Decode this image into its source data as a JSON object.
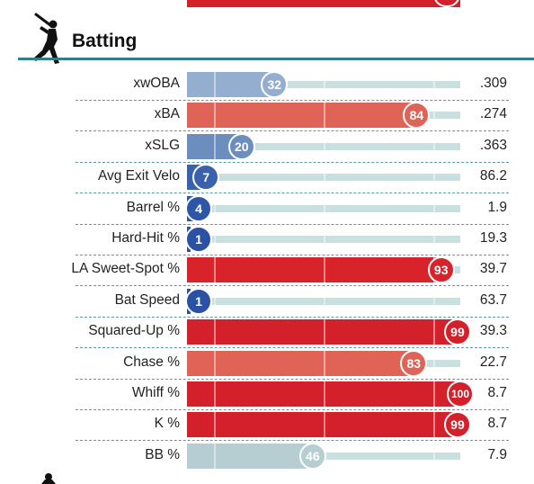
{
  "section": {
    "title": "Batting"
  },
  "icons": {
    "batter": "batter-silhouette-icon",
    "fielder": "fielder-silhouette-icon"
  },
  "colors": {
    "header_rule": "#2f7f87",
    "dashed_divider": "#5a9aa0",
    "track": "#c9dfe0",
    "top_bar": "#d42028"
  },
  "chart_data": {
    "type": "bar",
    "orientation": "horizontal",
    "title": "Batting",
    "value_axis": "percentile",
    "xlim": [
      0,
      100
    ],
    "rows": [
      {
        "label": "xwOBA",
        "percentile": 32,
        "stat": ".309",
        "color": "#93aecf"
      },
      {
        "label": "xBA",
        "percentile": 84,
        "stat": ".274",
        "color": "#e06357"
      },
      {
        "label": "xSLG",
        "percentile": 20,
        "stat": ".363",
        "color": "#6c8ebf"
      },
      {
        "label": "Avg Exit Velo",
        "percentile": 7,
        "stat": "86.2",
        "color": "#3a62ac"
      },
      {
        "label": "Barrel %",
        "percentile": 4,
        "stat": "1.9",
        "color": "#2e56a6"
      },
      {
        "label": "Hard-Hit %",
        "percentile": 1,
        "stat": "19.3",
        "color": "#2a51a3"
      },
      {
        "label": "LA Sweet-Spot %",
        "percentile": 93,
        "stat": "39.7",
        "color": "#d8232b"
      },
      {
        "label": "Bat Speed",
        "percentile": 1,
        "stat": "63.7",
        "color": "#2a51a3"
      },
      {
        "label": "Squared-Up %",
        "percentile": 99,
        "stat": "39.3",
        "color": "#d4202a"
      },
      {
        "label": "Chase %",
        "percentile": 83,
        "stat": "22.7",
        "color": "#e06357"
      },
      {
        "label": "Whiff %",
        "percentile": 100,
        "stat": "8.7",
        "color": "#d4202a"
      },
      {
        "label": "K %",
        "percentile": 99,
        "stat": "8.7",
        "color": "#d4202a"
      },
      {
        "label": "BB %",
        "percentile": 46,
        "stat": "7.9",
        "color": "#b6ced2"
      }
    ]
  }
}
